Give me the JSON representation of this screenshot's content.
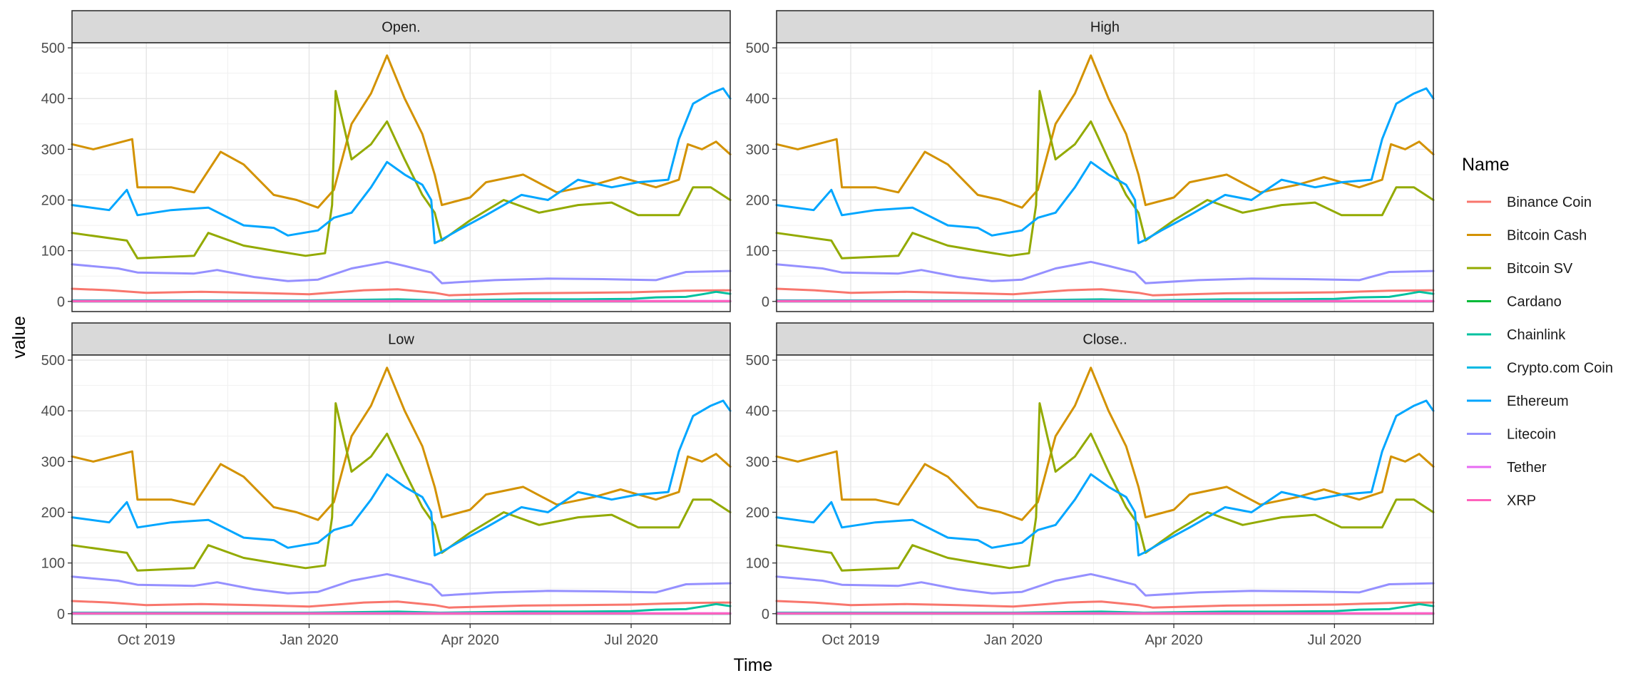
{
  "chart_data": {
    "type": "line",
    "facets": [
      "Open.",
      "High",
      "Low",
      "Close.."
    ],
    "xlabel": "Time",
    "ylabel": "value",
    "legend": {
      "title": "Name",
      "placement": "right"
    },
    "x_ticks": [
      "Oct 2019",
      "Jan 2020",
      "Apr 2020",
      "Jul 2020"
    ],
    "x_range": [
      "2019-08-20",
      "2020-08-26"
    ],
    "y_ticks": [
      0,
      100,
      200,
      300,
      400,
      500
    ],
    "ylim": [
      -20,
      510
    ],
    "grid": true,
    "series": [
      {
        "name": "Binance Coin",
        "color": "#F8766D",
        "x": [
          "2019-08-20",
          "2019-09-10",
          "2019-10-01",
          "2019-11-01",
          "2019-12-01",
          "2020-01-01",
          "2020-02-01",
          "2020-02-20",
          "2020-03-12",
          "2020-03-20",
          "2020-05-01",
          "2020-06-01",
          "2020-07-01",
          "2020-08-01",
          "2020-08-26"
        ],
        "values": [
          25,
          22,
          17,
          19,
          17,
          14,
          22,
          24,
          17,
          12,
          16,
          17,
          18,
          21,
          22
        ]
      },
      {
        "name": "Bitcoin Cash",
        "color": "#D39200",
        "x": [
          "2019-08-20",
          "2019-09-01",
          "2019-09-23",
          "2019-09-26",
          "2019-10-15",
          "2019-10-28",
          "2019-11-12",
          "2019-11-25",
          "2019-12-12",
          "2019-12-25",
          "2020-01-06",
          "2020-01-15",
          "2020-01-25",
          "2020-02-05",
          "2020-02-14",
          "2020-02-24",
          "2020-03-05",
          "2020-03-12",
          "2020-03-16",
          "2020-04-01",
          "2020-04-10",
          "2020-05-01",
          "2020-05-20",
          "2020-06-10",
          "2020-06-25",
          "2020-07-15",
          "2020-07-28",
          "2020-08-02",
          "2020-08-10",
          "2020-08-18",
          "2020-08-26"
        ],
        "values": [
          310,
          300,
          320,
          225,
          225,
          215,
          295,
          270,
          210,
          200,
          185,
          220,
          350,
          410,
          485,
          400,
          330,
          250,
          190,
          205,
          235,
          250,
          215,
          230,
          245,
          225,
          240,
          310,
          300,
          315,
          290
        ]
      },
      {
        "name": "Bitcoin SV",
        "color": "#93AA00",
        "x": [
          "2019-08-20",
          "2019-09-20",
          "2019-09-26",
          "2019-10-28",
          "2019-11-05",
          "2019-11-25",
          "2019-12-12",
          "2019-12-30",
          "2020-01-10",
          "2020-01-14",
          "2020-01-16",
          "2020-01-25",
          "2020-02-05",
          "2020-02-14",
          "2020-02-24",
          "2020-03-05",
          "2020-03-12",
          "2020-03-16",
          "2020-04-01",
          "2020-04-20",
          "2020-05-10",
          "2020-06-01",
          "2020-06-20",
          "2020-07-05",
          "2020-07-28",
          "2020-08-05",
          "2020-08-15",
          "2020-08-26"
        ],
        "values": [
          135,
          120,
          85,
          90,
          135,
          110,
          100,
          90,
          95,
          190,
          415,
          280,
          310,
          355,
          280,
          210,
          175,
          120,
          160,
          200,
          175,
          190,
          195,
          170,
          170,
          225,
          225,
          200
        ]
      },
      {
        "name": "Cardano",
        "color": "#00BA38",
        "x": [
          "2019-08-20",
          "2020-01-01",
          "2020-02-20",
          "2020-03-15",
          "2020-06-01",
          "2020-07-01",
          "2020-08-01",
          "2020-08-26"
        ],
        "values": [
          0.05,
          0.04,
          0.08,
          0.03,
          0.08,
          0.13,
          0.14,
          0.12
        ]
      },
      {
        "name": "Chainlink",
        "color": "#00C19F",
        "x": [
          "2019-08-20",
          "2019-10-01",
          "2020-01-01",
          "2020-02-20",
          "2020-03-15",
          "2020-05-01",
          "2020-06-01",
          "2020-07-01",
          "2020-07-15",
          "2020-08-01",
          "2020-08-10",
          "2020-08-18",
          "2020-08-26"
        ],
        "values": [
          2,
          2,
          2,
          4,
          2,
          4,
          4,
          5,
          8,
          9,
          14,
          19,
          15
        ]
      },
      {
        "name": "Crypto.com Coin",
        "color": "#00B9E3",
        "x": [
          "2019-08-20",
          "2020-01-01",
          "2020-03-15",
          "2020-06-01",
          "2020-08-01",
          "2020-08-26"
        ],
        "values": [
          0.05,
          0.04,
          0.03,
          0.1,
          0.16,
          0.16
        ]
      },
      {
        "name": "Ethereum",
        "color": "#00A6FF",
        "x": [
          "2019-08-20",
          "2019-09-10",
          "2019-09-20",
          "2019-09-26",
          "2019-10-15",
          "2019-11-05",
          "2019-11-25",
          "2019-12-12",
          "2019-12-20",
          "2020-01-06",
          "2020-01-15",
          "2020-01-25",
          "2020-02-05",
          "2020-02-14",
          "2020-02-24",
          "2020-03-05",
          "2020-03-10",
          "2020-03-12",
          "2020-03-15",
          "2020-03-25",
          "2020-04-10",
          "2020-04-30",
          "2020-05-15",
          "2020-06-01",
          "2020-06-20",
          "2020-07-05",
          "2020-07-22",
          "2020-07-28",
          "2020-08-05",
          "2020-08-15",
          "2020-08-22",
          "2020-08-26"
        ],
        "values": [
          190,
          180,
          220,
          170,
          180,
          185,
          150,
          145,
          130,
          140,
          165,
          175,
          225,
          275,
          250,
          230,
          200,
          115,
          120,
          140,
          170,
          210,
          200,
          240,
          225,
          235,
          240,
          320,
          390,
          410,
          420,
          400
        ]
      },
      {
        "name": "Litecoin",
        "color": "#9590FF",
        "x": [
          "2019-08-20",
          "2019-09-15",
          "2019-09-26",
          "2019-10-28",
          "2019-11-10",
          "2019-12-01",
          "2019-12-20",
          "2020-01-06",
          "2020-01-25",
          "2020-02-14",
          "2020-02-24",
          "2020-03-10",
          "2020-03-16",
          "2020-04-15",
          "2020-05-15",
          "2020-06-15",
          "2020-07-15",
          "2020-08-01",
          "2020-08-26"
        ],
        "values": [
          73,
          65,
          57,
          55,
          62,
          48,
          40,
          43,
          65,
          78,
          70,
          57,
          36,
          42,
          45,
          44,
          42,
          58,
          60
        ]
      },
      {
        "name": "Tether",
        "color": "#E76BF3",
        "x": [
          "2019-08-20",
          "2020-03-15",
          "2020-08-26"
        ],
        "values": [
          1,
          1,
          1
        ]
      },
      {
        "name": "XRP",
        "color": "#FF62BC",
        "x": [
          "2019-08-20",
          "2020-01-01",
          "2020-03-15",
          "2020-08-26"
        ],
        "values": [
          0.27,
          0.19,
          0.17,
          0.28
        ]
      }
    ]
  }
}
